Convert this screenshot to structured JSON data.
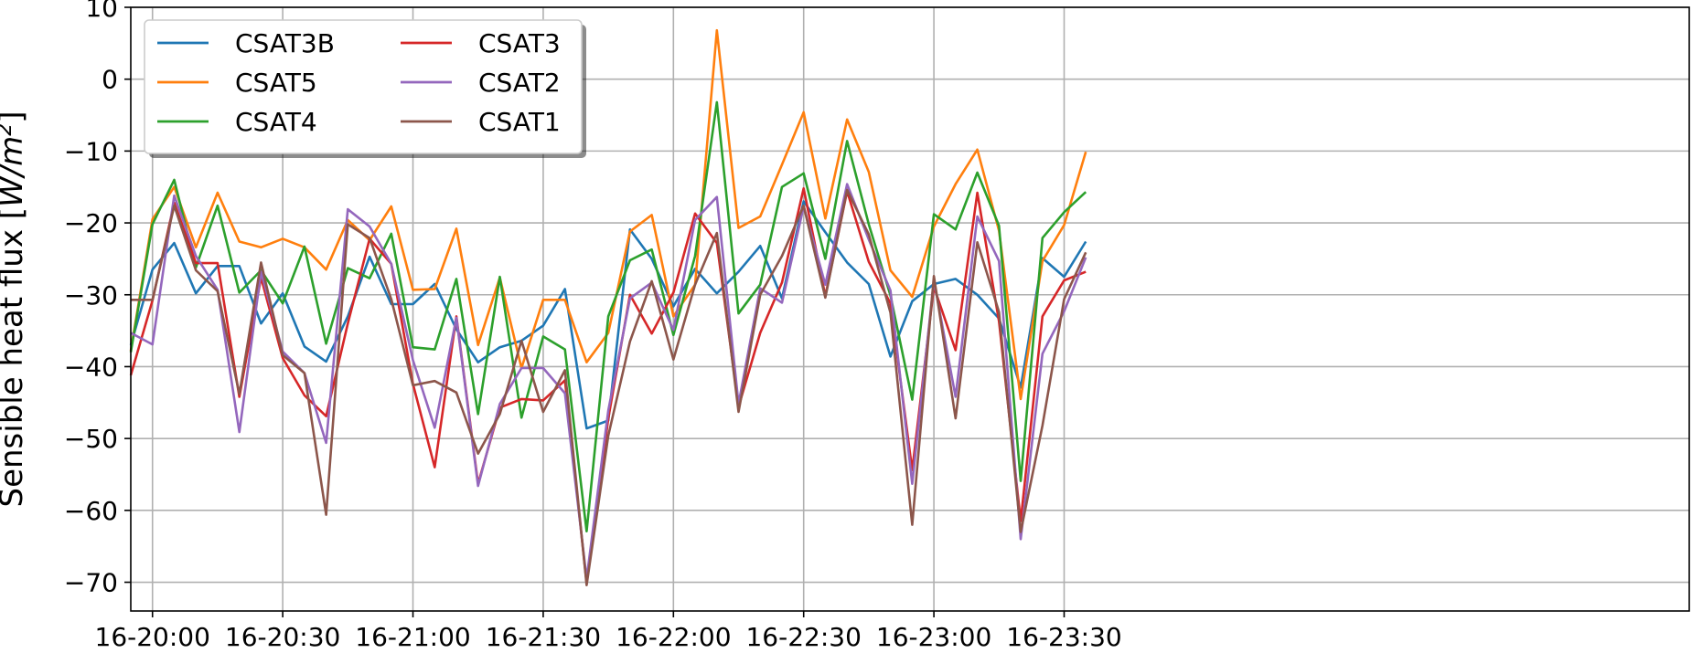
{
  "chart_data": {
    "type": "line",
    "title": "",
    "xlabel": "",
    "ylabel": "Sensible heat flux [W/m²]",
    "ylabel_main": "Sensible heat flux [",
    "ylabel_unit": "W/m",
    "ylabel_sup": "2",
    "ylabel_close": "]",
    "xlim": [
      -5,
      354
    ],
    "ylim": [
      -74,
      10
    ],
    "yticks": [
      10,
      0,
      -10,
      -20,
      -30,
      -40,
      -50,
      -60,
      -70
    ],
    "ytick_labels": [
      "10",
      "0",
      "−10",
      "−20",
      "−30",
      "−40",
      "−50",
      "−60",
      "−70"
    ],
    "xticks": [
      0,
      30,
      60,
      90,
      120,
      150,
      180,
      210
    ],
    "xtick_labels": [
      "16-20:00",
      "16-20:30",
      "16-21:00",
      "16-21:30",
      "16-22:00",
      "16-22:30",
      "16-23:00",
      "16-23:30"
    ],
    "x": [
      -5,
      0,
      5,
      10,
      15,
      20,
      25,
      30,
      35,
      40,
      45,
      50,
      55,
      60,
      65,
      70,
      75,
      80,
      85,
      90,
      95,
      100,
      105,
      110,
      115,
      120,
      125,
      130,
      135,
      140,
      145,
      150,
      155,
      160,
      165,
      170,
      175,
      180,
      185,
      190,
      195,
      200,
      205,
      210,
      215
    ],
    "grid": true,
    "legend_location": "upper-left",
    "legend_columns": 2,
    "series": [
      {
        "name": "CSAT3B",
        "color": "#1f77b4",
        "values": [
          -37,
          -26.5,
          -22.8,
          -29.8,
          -26,
          -26,
          -34,
          -29.8,
          -37.2,
          -39.3,
          -33,
          -24.7,
          -31.3,
          -31.3,
          -28.5,
          -34.8,
          -39.4,
          -37.3,
          -36.4,
          -34.3,
          -29.2,
          -48.6,
          -47.5,
          -20.9,
          -25,
          -31.6,
          -26.4,
          -29.8,
          -26.8,
          -23.2,
          -30.5,
          -17,
          -21.3,
          -25.5,
          -28.5,
          -38.6,
          -30.9,
          -28.5,
          -27.8,
          -30,
          -33.3,
          -42.9,
          -24.9,
          -27.5,
          -22.6
        ]
      },
      {
        "name": "CSAT5",
        "color": "#ff7f0e",
        "values": [
          -37.8,
          -19.5,
          -15,
          -23.4,
          -15.8,
          -22.6,
          -23.4,
          -22.2,
          -23.4,
          -26.5,
          -19.6,
          -22.4,
          -17.7,
          -29.3,
          -29.2,
          -20.8,
          -37,
          -27.6,
          -40.2,
          -30.7,
          -30.7,
          -39.4,
          -35.3,
          -21.2,
          -18.9,
          -33,
          -28.6,
          6.8,
          -20.7,
          -19.1,
          -11.9,
          -4.6,
          -19.4,
          -5.6,
          -12.9,
          -26.6,
          -30.3,
          -20.5,
          -14.6,
          -9.8,
          -21.1,
          -44.5,
          -25.3,
          -20.3,
          -10.1
        ]
      },
      {
        "name": "CSAT4",
        "color": "#2ca02c",
        "values": [
          -38,
          -20.2,
          -14,
          -26.2,
          -17.6,
          -29.7,
          -26.6,
          -31.2,
          -23.3,
          -36.8,
          -26.3,
          -27.7,
          -21.5,
          -37.3,
          -37.6,
          -27.8,
          -46.6,
          -27.5,
          -47.1,
          -35.8,
          -37.6,
          -62.9,
          -33,
          -25.2,
          -23.7,
          -35.6,
          -24.6,
          -3.2,
          -32.6,
          -28.6,
          -15,
          -13.1,
          -25,
          -8.6,
          -20.2,
          -30.1,
          -44.6,
          -18.8,
          -20.9,
          -13,
          -20.4,
          -55.9,
          -22.1,
          -18.5,
          -15.7
        ]
      },
      {
        "name": "CSAT3",
        "color": "#d62728",
        "values": [
          -41.2,
          -30.8,
          -17.2,
          -25.6,
          -25.6,
          -44.2,
          -27.6,
          -38.8,
          -44,
          -46.9,
          -34,
          -22.2,
          -25.7,
          -42.4,
          -54,
          -33,
          -56.3,
          -45.7,
          -44.5,
          -44.7,
          -41.9,
          -70.1,
          -47.2,
          -30,
          -35.4,
          -29.7,
          -18.7,
          -22.8,
          -45.6,
          -35.3,
          -28.3,
          -15.2,
          -30.2,
          -15.6,
          -25.4,
          -31.2,
          -54.4,
          -28.9,
          -37.7,
          -15.8,
          -33.7,
          -61.5,
          -33,
          -28,
          -26.8
        ]
      },
      {
        "name": "CSAT2",
        "color": "#9467bd",
        "values": [
          -35.3,
          -36.9,
          -16.2,
          -24.6,
          -29.3,
          -49.1,
          -26.8,
          -37.9,
          -40.9,
          -50.6,
          -18.1,
          -20.5,
          -25.7,
          -39.1,
          -48.5,
          -33.2,
          -56.6,
          -45.2,
          -40.2,
          -40.2,
          -43.7,
          -69.5,
          -46.1,
          -30.5,
          -28.3,
          -34.9,
          -19.6,
          -16.4,
          -45.2,
          -29.1,
          -31.1,
          -17.7,
          -28.6,
          -14.6,
          -22.3,
          -29.4,
          -56.3,
          -28,
          -44.2,
          -19.1,
          -25.3,
          -64,
          -38.2,
          -32.3,
          -24.8
        ]
      },
      {
        "name": "CSAT1",
        "color": "#8c564b",
        "values": [
          -30.7,
          -30.7,
          -17.6,
          -26.6,
          -29.5,
          -43.8,
          -25.5,
          -38.4,
          -40.9,
          -60.6,
          -20.2,
          -22.1,
          -30.6,
          -42.6,
          -42,
          -43.6,
          -52.1,
          -46.6,
          -36.4,
          -46.3,
          -40.5,
          -70.4,
          -49.6,
          -36.5,
          -28.1,
          -39,
          -28.6,
          -21.4,
          -46.3,
          -30,
          -24.6,
          -17.6,
          -30.4,
          -15.4,
          -21.6,
          -32.5,
          -62,
          -27.4,
          -47.2,
          -22.7,
          -32.4,
          -63,
          -48.2,
          -30.6,
          -24.1
        ]
      }
    ]
  }
}
